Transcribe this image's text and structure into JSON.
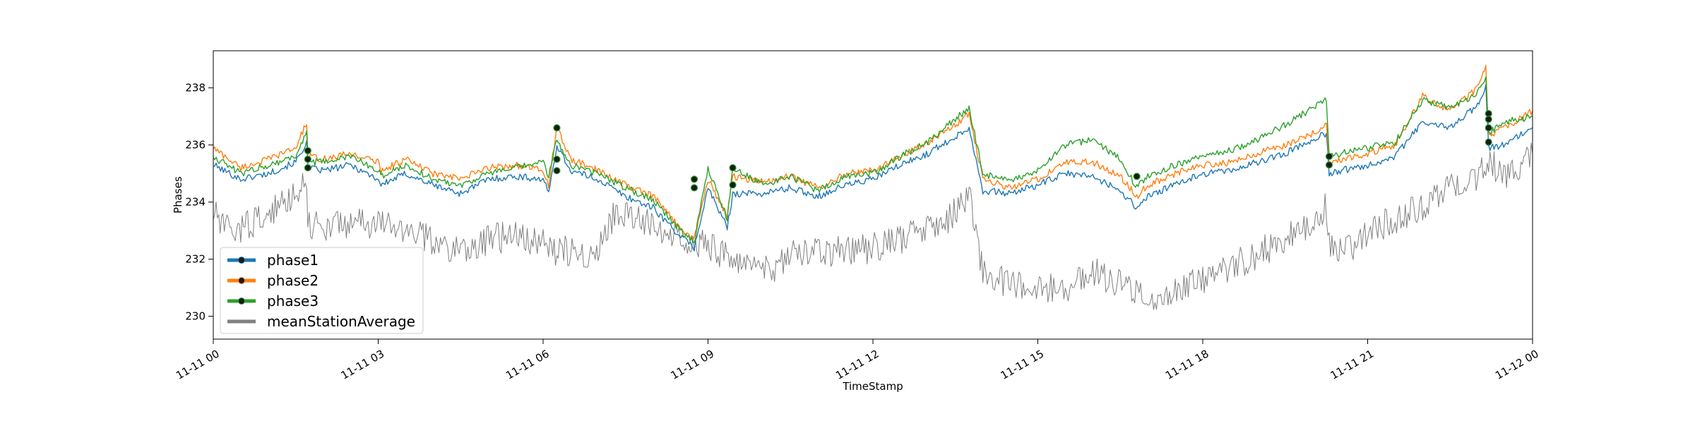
{
  "chart_data": {
    "type": "line",
    "xlabel": "TimeStamp",
    "ylabel": "Phases",
    "x_range": [
      "2019-11-11T00:00",
      "2019-11-12T00:00"
    ],
    "ylim": [
      229.2,
      239.3
    ],
    "x_ticks": [
      {
        "hour": 0,
        "label": "11-11 00"
      },
      {
        "hour": 3,
        "label": "11-11 03"
      },
      {
        "hour": 6,
        "label": "11-11 06"
      },
      {
        "hour": 9,
        "label": "11-11 09"
      },
      {
        "hour": 12,
        "label": "11-11 12"
      },
      {
        "hour": 15,
        "label": "11-11 15"
      },
      {
        "hour": 18,
        "label": "11-11 18"
      },
      {
        "hour": 21,
        "label": "11-11 21"
      },
      {
        "hour": 24,
        "label": "11-12 00"
      }
    ],
    "y_ticks": [
      230,
      232,
      234,
      236,
      238
    ],
    "grid": false,
    "legend_position": "lower-left",
    "series": [
      {
        "name": "phase1",
        "color": "#1f77b4",
        "x_hours": [
          0,
          0.5,
          1.0,
          1.5,
          1.7,
          1.72,
          2.0,
          2.5,
          3.0,
          3.05,
          3.5,
          4.0,
          4.5,
          5.0,
          5.5,
          6.0,
          6.1,
          6.25,
          6.5,
          7.0,
          7.5,
          8.0,
          8.5,
          8.75,
          9.0,
          9.35,
          9.45,
          10.0,
          10.5,
          11.0,
          11.5,
          12.0,
          12.5,
          13.0,
          13.5,
          13.75,
          14.0,
          14.5,
          15.0,
          15.5,
          16.0,
          16.5,
          16.8,
          17.0,
          17.5,
          18.0,
          18.5,
          19.0,
          19.5,
          20.0,
          20.25,
          20.3,
          20.5,
          21.0,
          21.5,
          22.0,
          22.5,
          23.0,
          23.15,
          23.2,
          23.5,
          24.0
        ],
        "values": [
          235.3,
          234.8,
          235.0,
          235.4,
          236.1,
          235.2,
          235.1,
          235.3,
          234.8,
          234.6,
          235.0,
          234.6,
          234.3,
          234.8,
          234.9,
          234.8,
          234.3,
          236.0,
          235.1,
          234.8,
          234.2,
          233.8,
          232.8,
          232.4,
          234.5,
          233.1,
          234.3,
          234.3,
          234.5,
          234.2,
          234.6,
          234.8,
          235.3,
          235.7,
          236.3,
          236.6,
          234.4,
          234.3,
          234.6,
          235.0,
          234.9,
          234.4,
          233.8,
          234.2,
          234.6,
          235.0,
          235.1,
          235.4,
          235.7,
          236.2,
          236.4,
          235.0,
          235.1,
          235.3,
          235.6,
          236.8,
          236.6,
          237.4,
          238.1,
          235.9,
          236.0,
          236.6
        ]
      },
      {
        "name": "phase2",
        "color": "#ff7f0e",
        "x_hours": [
          0,
          0.5,
          1.0,
          1.5,
          1.7,
          1.72,
          2.0,
          2.5,
          3.0,
          3.05,
          3.5,
          4.0,
          4.5,
          5.0,
          5.5,
          6.0,
          6.1,
          6.25,
          6.5,
          7.0,
          7.5,
          8.0,
          8.5,
          8.75,
          9.0,
          9.35,
          9.45,
          10.0,
          10.5,
          11.0,
          11.5,
          12.0,
          12.5,
          13.0,
          13.5,
          13.75,
          14.0,
          14.5,
          15.0,
          15.5,
          16.0,
          16.5,
          16.8,
          17.0,
          17.5,
          18.0,
          18.5,
          19.0,
          19.5,
          20.0,
          20.25,
          20.3,
          20.5,
          21.0,
          21.5,
          22.0,
          22.5,
          23.0,
          23.15,
          23.2,
          23.5,
          24.0
        ],
        "values": [
          235.9,
          235.2,
          235.5,
          235.9,
          236.8,
          235.6,
          235.5,
          235.7,
          235.4,
          235.1,
          235.5,
          235.0,
          234.8,
          235.2,
          235.3,
          235.1,
          234.6,
          236.6,
          235.5,
          235.1,
          234.6,
          234.2,
          233.1,
          232.7,
          234.8,
          233.5,
          234.9,
          234.7,
          234.9,
          234.5,
          235.0,
          235.1,
          235.6,
          236.1,
          236.7,
          237.1,
          234.8,
          234.5,
          234.8,
          235.4,
          235.4,
          234.9,
          234.2,
          234.6,
          235.0,
          235.3,
          235.4,
          235.7,
          236.0,
          236.4,
          236.8,
          235.3,
          235.5,
          235.7,
          236.0,
          237.7,
          237.2,
          238.0,
          238.8,
          236.3,
          236.6,
          237.2
        ]
      },
      {
        "name": "phase3",
        "color": "#2ca02c",
        "x_hours": [
          0,
          0.5,
          1.0,
          1.5,
          1.7,
          1.72,
          2.0,
          2.5,
          3.0,
          3.05,
          3.5,
          4.0,
          4.5,
          5.0,
          5.5,
          6.0,
          6.1,
          6.25,
          6.5,
          7.0,
          7.5,
          8.0,
          8.5,
          8.75,
          9.0,
          9.35,
          9.45,
          10.0,
          10.5,
          11.0,
          11.5,
          12.0,
          12.5,
          13.0,
          13.5,
          13.75,
          14.0,
          14.5,
          15.0,
          15.5,
          16.0,
          16.5,
          16.8,
          17.0,
          17.5,
          18.0,
          18.5,
          19.0,
          19.5,
          20.0,
          20.25,
          20.3,
          20.5,
          21.0,
          21.5,
          22.0,
          22.5,
          23.0,
          23.15,
          23.2,
          23.5,
          24.0
        ],
        "values": [
          235.6,
          235.0,
          235.3,
          235.6,
          236.5,
          235.4,
          235.4,
          235.6,
          235.1,
          234.9,
          235.3,
          234.8,
          234.6,
          235.0,
          235.2,
          235.4,
          234.9,
          236.2,
          235.3,
          235.0,
          234.5,
          234.1,
          233.0,
          232.6,
          235.2,
          233.4,
          235.2,
          234.6,
          234.9,
          234.4,
          234.9,
          235.0,
          235.6,
          236.1,
          236.9,
          237.3,
          235.0,
          234.7,
          235.1,
          236.0,
          236.2,
          235.5,
          234.5,
          234.9,
          235.3,
          235.6,
          235.8,
          236.2,
          236.7,
          237.3,
          237.6,
          235.6,
          235.7,
          235.9,
          236.1,
          237.6,
          237.3,
          237.8,
          238.4,
          236.4,
          236.8,
          237.0
        ]
      },
      {
        "name": "meanStationAverage",
        "color": "#808080",
        "x_hours": [
          0,
          0.3,
          0.7,
          1.0,
          1.4,
          1.7,
          1.72,
          2.0,
          2.5,
          3.0,
          3.5,
          4.0,
          4.5,
          5.0,
          5.5,
          6.0,
          6.2,
          6.5,
          7.0,
          7.3,
          7.5,
          8.0,
          8.5,
          8.75,
          9.0,
          9.5,
          10.0,
          10.5,
          11.0,
          11.5,
          12.0,
          12.5,
          13.0,
          13.5,
          13.75,
          14.0,
          14.5,
          15.0,
          15.5,
          16.0,
          16.5,
          17.0,
          17.5,
          18.0,
          18.5,
          19.0,
          19.5,
          20.0,
          20.25,
          20.3,
          20.5,
          21.0,
          21.5,
          22.0,
          22.5,
          23.0,
          23.2,
          23.5,
          24.0
        ],
        "values": [
          233.6,
          232.9,
          233.3,
          233.5,
          234.2,
          234.8,
          233.3,
          233.1,
          233.3,
          233.2,
          233.1,
          232.6,
          232.3,
          232.7,
          232.8,
          232.6,
          232.3,
          232.3,
          232.2,
          233.6,
          233.5,
          233.2,
          232.9,
          232.6,
          232.5,
          231.9,
          231.5,
          232.1,
          232.2,
          232.3,
          232.4,
          232.7,
          233.0,
          233.6,
          234.2,
          231.6,
          231.1,
          230.9,
          231.0,
          231.6,
          231.1,
          230.5,
          231.0,
          231.3,
          231.7,
          232.2,
          232.7,
          233.3,
          233.8,
          232.4,
          232.2,
          232.9,
          233.4,
          233.9,
          234.6,
          234.9,
          235.4,
          235.0,
          235.7
        ]
      }
    ],
    "markers": [
      {
        "hour": 1.72,
        "values": [
          235.8,
          235.5,
          235.2
        ]
      },
      {
        "hour": 6.25,
        "values": [
          236.6,
          235.5,
          235.1
        ]
      },
      {
        "hour": 8.75,
        "values": [
          234.8,
          234.5
        ]
      },
      {
        "hour": 9.45,
        "values": [
          235.2,
          234.6
        ]
      },
      {
        "hour": 16.8,
        "values": [
          234.9
        ]
      },
      {
        "hour": 20.3,
        "values": [
          235.6,
          235.3
        ]
      },
      {
        "hour": 23.2,
        "values": [
          237.1,
          236.9,
          236.6,
          236.1
        ]
      }
    ],
    "legend": [
      {
        "label": "phase1",
        "color": "#1f77b4",
        "marker": true
      },
      {
        "label": "phase2",
        "color": "#ff7f0e",
        "marker": true
      },
      {
        "label": "phase3",
        "color": "#2ca02c",
        "marker": true
      },
      {
        "label": "meanStationAverage",
        "color": "#808080",
        "marker": false
      }
    ]
  }
}
